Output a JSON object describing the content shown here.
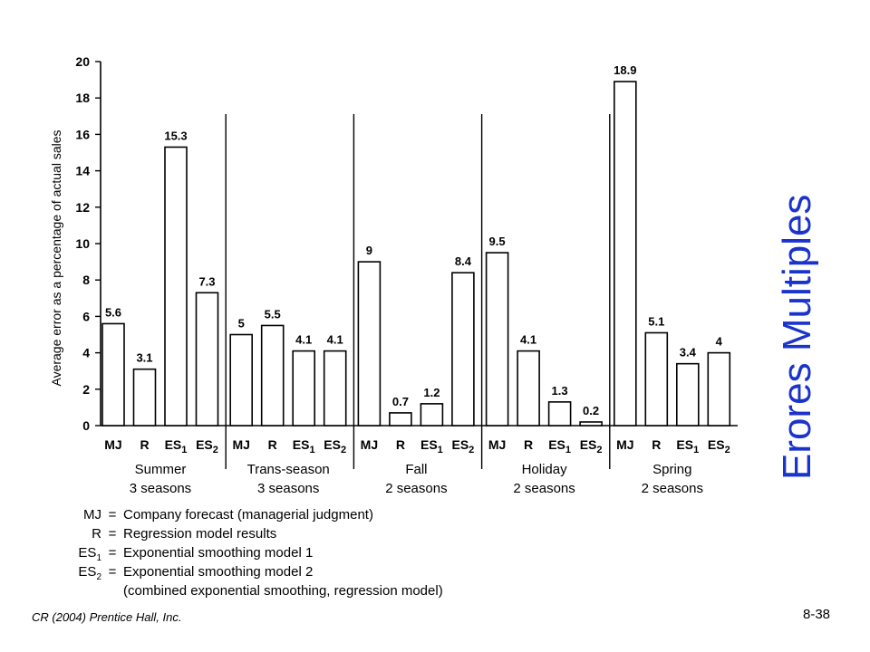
{
  "side_title": "Erores  Multiples",
  "footer": {
    "credit": "CR (2004) Prentice Hall, Inc.",
    "slide_number": "8-38"
  },
  "legend": [
    {
      "abbr": "MJ",
      "sub": "",
      "eq": "=",
      "text": "Company forecast (managerial judgment)"
    },
    {
      "abbr": "R",
      "sub": "",
      "eq": "=",
      "text": "Regression model results"
    },
    {
      "abbr": "ES",
      "sub": "1",
      "eq": "=",
      "text": "Exponential smoothing model 1"
    },
    {
      "abbr": "ES",
      "sub": "2",
      "eq": "=",
      "text": "Exponential smoothing model 2"
    }
  ],
  "legend_note": "(combined exponential smoothing, regression model)",
  "chart_data": {
    "type": "bar",
    "ylabel": "Average error as a percentage of actual sales",
    "ylim": [
      0,
      20
    ],
    "yticks": [
      0,
      2,
      4,
      6,
      8,
      10,
      12,
      14,
      16,
      18,
      20
    ],
    "categories": [
      {
        "base": "MJ",
        "sub": ""
      },
      {
        "base": "R",
        "sub": ""
      },
      {
        "base": "ES",
        "sub": "1"
      },
      {
        "base": "ES",
        "sub": "2"
      }
    ],
    "groups": [
      {
        "name": "Summer",
        "subtitle": "3 seasons",
        "values": [
          5.6,
          3.1,
          15.3,
          7.3
        ],
        "labels": [
          "5.6",
          "3.1",
          "15.3",
          "7.3"
        ]
      },
      {
        "name": "Trans-season",
        "subtitle": "3 seasons",
        "values": [
          5,
          5.5,
          4.1,
          4.1
        ],
        "labels": [
          "5",
          "5.5",
          "4.1",
          "4.1"
        ]
      },
      {
        "name": "Fall",
        "subtitle": "2 seasons",
        "values": [
          9,
          0.7,
          1.2,
          8.4
        ],
        "labels": [
          "9",
          "0.7",
          "1.2",
          "8.4"
        ]
      },
      {
        "name": "Holiday",
        "subtitle": "2 seasons",
        "values": [
          9.5,
          4.1,
          1.3,
          0.2
        ],
        "labels": [
          "9.5",
          "4.1",
          "1.3",
          "0.2"
        ]
      },
      {
        "name": "Spring",
        "subtitle": "2 seasons",
        "values": [
          18.9,
          5.1,
          3.4,
          4
        ],
        "labels": [
          "18.9",
          "5.1",
          "3.4",
          "4"
        ]
      }
    ],
    "grid": false,
    "legend_position": "bottom"
  }
}
